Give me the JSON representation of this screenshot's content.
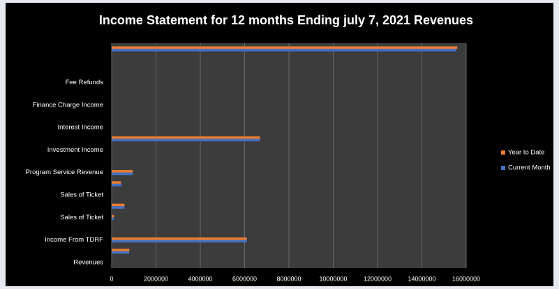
{
  "chart_data": {
    "type": "bar",
    "orientation": "horizontal",
    "title": "Income Statement for 12 months Ending july 7, 2021 Revenues",
    "categories": [
      "Revenues",
      null,
      "Income From TDRF",
      null,
      "Sales of Ticket",
      null,
      "Sales of Ticket",
      null,
      "Program Service Revenue",
      null,
      "Investment Income",
      null,
      "Interest Income",
      null,
      "Finance Charge Income",
      null,
      "Fee Refunds",
      null,
      null,
      null
    ],
    "series": [
      {
        "name": "Year to Date",
        "color": "#ed7d31",
        "values": [
          0,
          800000,
          6100000,
          0,
          100000,
          580000,
          0,
          420000,
          950000,
          0,
          0,
          6700000,
          0,
          0,
          0,
          0,
          0,
          0,
          0,
          15600000
        ]
      },
      {
        "name": "Current Month",
        "color": "#4472c4",
        "values": [
          0,
          790000,
          6100000,
          0,
          100000,
          580000,
          0,
          440000,
          950000,
          0,
          0,
          6700000,
          0,
          0,
          0,
          0,
          0,
          0,
          0,
          15550000
        ]
      }
    ],
    "xlim": [
      0,
      16000000
    ],
    "xticks": [
      0,
      2000000,
      4000000,
      6000000,
      8000000,
      10000000,
      12000000,
      14000000,
      16000000
    ],
    "grid": true,
    "legend": "right"
  }
}
